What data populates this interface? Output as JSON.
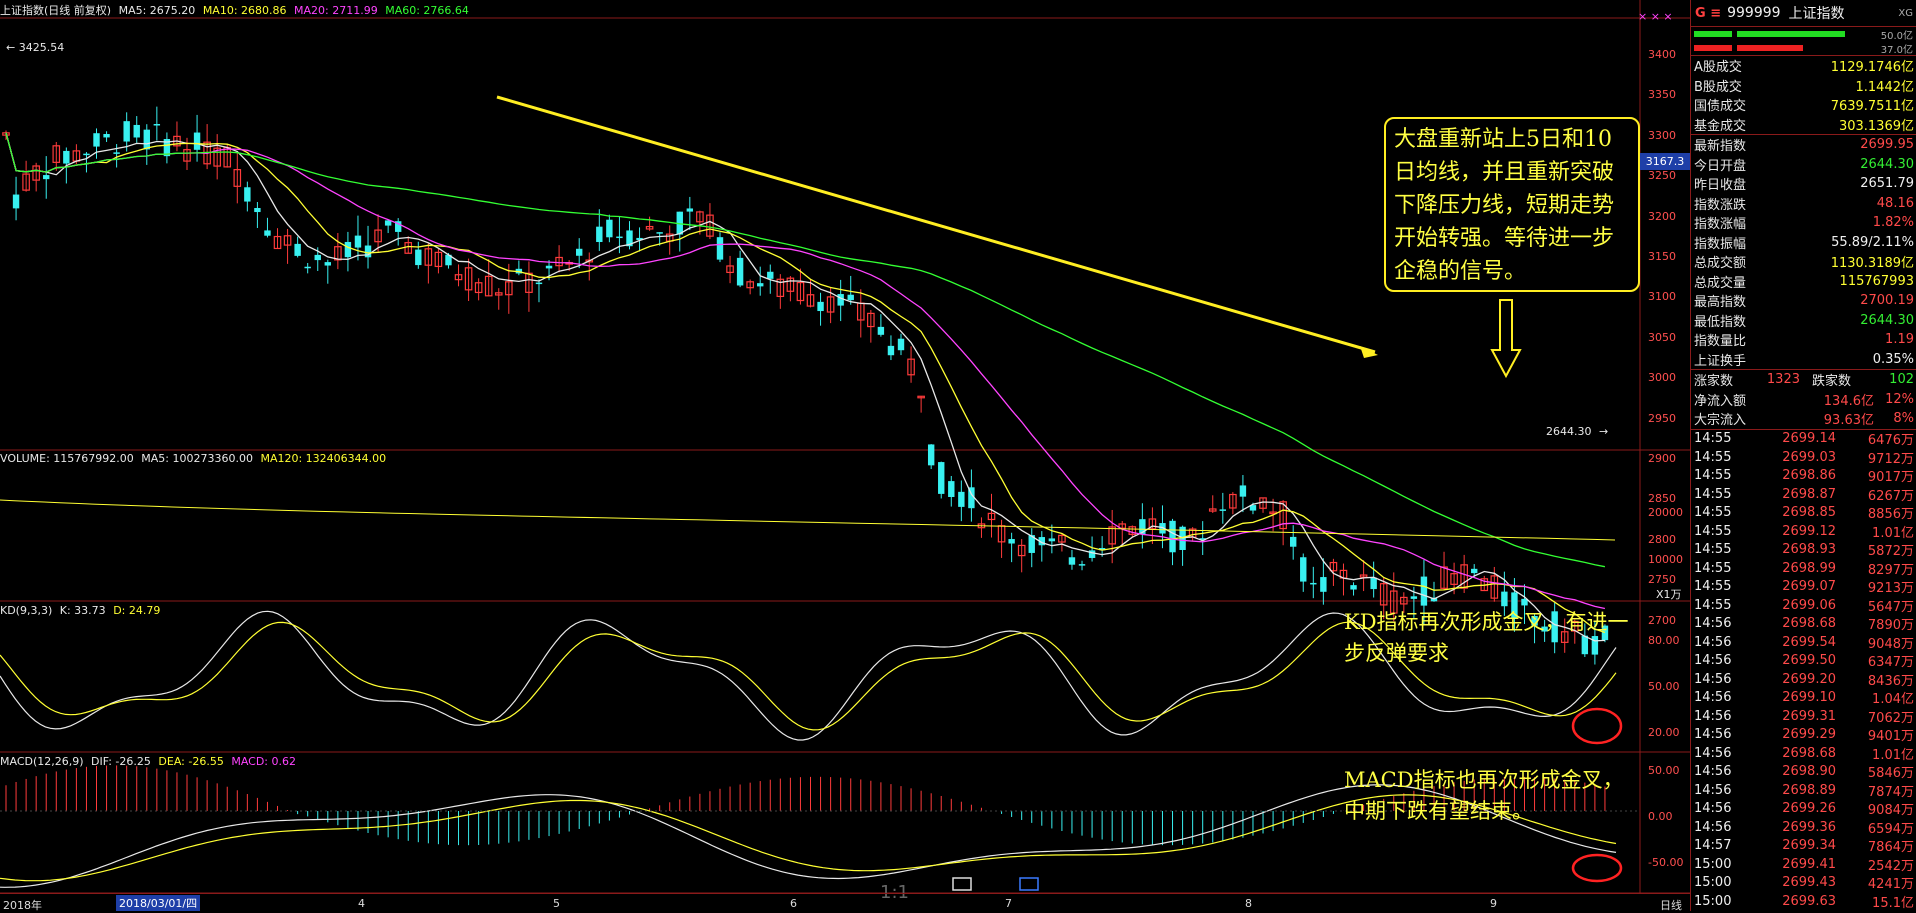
{
  "header": {
    "index_name": "上证指数(日线 前复权)",
    "ma5": "MA5: 2675.20",
    "ma10": "MA10: 2680.86",
    "ma20": "MA20: 2711.99",
    "ma60": "MA60: 2766.64",
    "high_mark": "3425.54",
    "low_mark": "2644.30",
    "cursor_price": "3167.3",
    "top_right_glyphs": "× × ×"
  },
  "volume_header": {
    "label": "VOLUME: 115767992.00",
    "ma5": "MA5: 100273360.00",
    "ma120": "MA120: 132406344.00",
    "unit": "X1万"
  },
  "kd_header": {
    "label": "KD(9,3,3)",
    "k": "K: 33.73",
    "d": "D: 24.79"
  },
  "macd_header": {
    "label": "MACD(12,26,9)",
    "dif": "DIF: -26.25",
    "dea": "DEA: -26.55",
    "macd": "MACD: 0.62"
  },
  "annotations": {
    "callout": "大盘重新站上5日和10日均线，并且重新突破下降压力线，短期走势开始转强。等待进一步企稳的信号。",
    "kd_note": "KD指标再次形成金叉，有进一步反弹要求",
    "macd_note": "MACD指标也再次形成金叉，中期下跌有望结束。",
    "ratio": "1:1"
  },
  "price_axis": [
    "3400",
    "3350",
    "3300",
    "3250",
    "3200",
    "3150",
    "3100",
    "3050",
    "3000",
    "2950",
    "2900",
    "2850",
    "2800",
    "2750",
    "2700"
  ],
  "volume_axis": [
    "20000",
    "10000"
  ],
  "kd_axis": [
    "80.00",
    "50.00",
    "20.00"
  ],
  "macd_axis": [
    "50.00",
    "0.00",
    "-50.00"
  ],
  "date_axis": {
    "year": "2018年",
    "cursor_date": "2018/03/01/四",
    "months": [
      "4",
      "5",
      "6",
      "7",
      "8",
      "9"
    ],
    "period": "日线"
  },
  "panel": {
    "code": "999999",
    "name": "上证指数",
    "badge": "XG",
    "bar1_value": "50.0亿",
    "bar2_value": "37.0亿",
    "rows": [
      {
        "k": "A股成交",
        "v": "1129.1746亿",
        "c": "yel"
      },
      {
        "k": "B股成交",
        "v": "1.1442亿",
        "c": "yel"
      },
      {
        "k": "国债成交",
        "v": "7639.7511亿",
        "c": "yel"
      },
      {
        "k": "基金成交",
        "v": "303.1369亿",
        "c": "yel"
      }
    ],
    "rows2": [
      {
        "k": "最新指数",
        "v": "2699.95",
        "c": "red"
      },
      {
        "k": "今日开盘",
        "v": "2644.30",
        "c": "grn"
      },
      {
        "k": "昨日收盘",
        "v": "2651.79",
        "c": "wht"
      },
      {
        "k": "指数涨跌",
        "v": "48.16",
        "c": "red"
      },
      {
        "k": "指数涨幅",
        "v": "1.82%",
        "c": "red"
      },
      {
        "k": "指数振幅",
        "v": "55.89/2.11%",
        "c": "wht"
      },
      {
        "k": "总成交额",
        "v": "1130.3189亿",
        "c": "yel"
      },
      {
        "k": "总成交量",
        "v": "115767993",
        "c": "yel"
      },
      {
        "k": "最高指数",
        "v": "2700.19",
        "c": "red"
      },
      {
        "k": "最低指数",
        "v": "2644.30",
        "c": "grn"
      },
      {
        "k": "指数量比",
        "v": "1.19",
        "c": "red"
      },
      {
        "k": "上证换手",
        "v": "0.35%",
        "c": "wht"
      }
    ],
    "updown": {
      "up_label": "涨家数",
      "up": "1323",
      "down_label": "跌家数",
      "down": "102"
    },
    "flows": [
      {
        "k": "净流入额",
        "v": "134.6亿",
        "pct": "12%"
      },
      {
        "k": "大宗流入",
        "v": "93.63亿",
        "pct": "8%"
      }
    ],
    "ticks": [
      {
        "t": "14:55",
        "p": "2699.14",
        "q": "6476万"
      },
      {
        "t": "14:55",
        "p": "2699.03",
        "q": "9712万"
      },
      {
        "t": "14:55",
        "p": "2698.86",
        "q": "9017万"
      },
      {
        "t": "14:55",
        "p": "2698.87",
        "q": "6267万"
      },
      {
        "t": "14:55",
        "p": "2698.85",
        "q": "8856万"
      },
      {
        "t": "14:55",
        "p": "2699.12",
        "q": "1.01亿"
      },
      {
        "t": "14:55",
        "p": "2698.93",
        "q": "5872万"
      },
      {
        "t": "14:55",
        "p": "2698.99",
        "q": "8297万"
      },
      {
        "t": "14:55",
        "p": "2699.07",
        "q": "9213万"
      },
      {
        "t": "14:55",
        "p": "2699.06",
        "q": "5647万"
      },
      {
        "t": "14:56",
        "p": "2698.68",
        "q": "7890万"
      },
      {
        "t": "14:56",
        "p": "2699.54",
        "q": "9048万"
      },
      {
        "t": "14:56",
        "p": "2699.50",
        "q": "6347万"
      },
      {
        "t": "14:56",
        "p": "2699.20",
        "q": "8436万"
      },
      {
        "t": "14:56",
        "p": "2699.10",
        "q": "1.04亿"
      },
      {
        "t": "14:56",
        "p": "2699.31",
        "q": "7062万"
      },
      {
        "t": "14:56",
        "p": "2699.29",
        "q": "9401万"
      },
      {
        "t": "14:56",
        "p": "2698.68",
        "q": "1.01亿"
      },
      {
        "t": "14:56",
        "p": "2698.90",
        "q": "5846万"
      },
      {
        "t": "14:56",
        "p": "2698.89",
        "q": "7874万"
      },
      {
        "t": "14:56",
        "p": "2699.26",
        "q": "9084万"
      },
      {
        "t": "14:56",
        "p": "2699.36",
        "q": "6594万"
      },
      {
        "t": "14:57",
        "p": "2699.34",
        "q": "7864万"
      },
      {
        "t": "15:00",
        "p": "2699.41",
        "q": "2542万"
      },
      {
        "t": "15:00",
        "p": "2699.43",
        "q": "4241万"
      },
      {
        "t": "15:00",
        "p": "2699.63",
        "q": "15.1亿"
      }
    ]
  },
  "colors": {
    "up": "#ff3b3b",
    "down": "#38f0f0",
    "ma5": "#e8e8e8",
    "ma10": "#ffff33",
    "ma20": "#ff44ff",
    "ma60": "#33ff33",
    "trend": "#ffee22",
    "grid": "#8a1a1a"
  }
}
